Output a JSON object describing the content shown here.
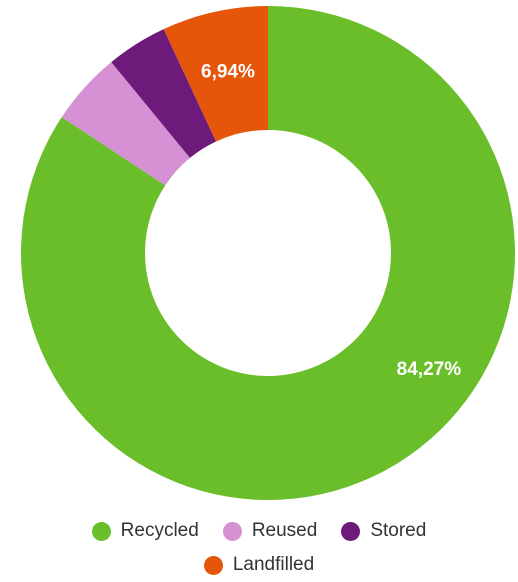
{
  "chart_data": {
    "type": "pie",
    "donut": true,
    "slices": [
      {
        "label": "Recycled",
        "value": 84.27,
        "display": "84,27%",
        "color": "#6abe2a",
        "show_label": true
      },
      {
        "label": "Reused",
        "value": 4.79,
        "display": "",
        "color": "#d591d3",
        "show_label": false
      },
      {
        "label": "Stored",
        "value": 4.0,
        "display": "",
        "color": "#6d1a7a",
        "show_label": false
      },
      {
        "label": "Landfilled",
        "value": 6.94,
        "display": "6,94%",
        "color": "#e6560a",
        "show_label": true
      }
    ],
    "legend_position": "bottom"
  },
  "legend": {
    "row1": [
      "Recycled",
      "Reused",
      "Stored"
    ],
    "row2": [
      "Landfilled"
    ]
  }
}
